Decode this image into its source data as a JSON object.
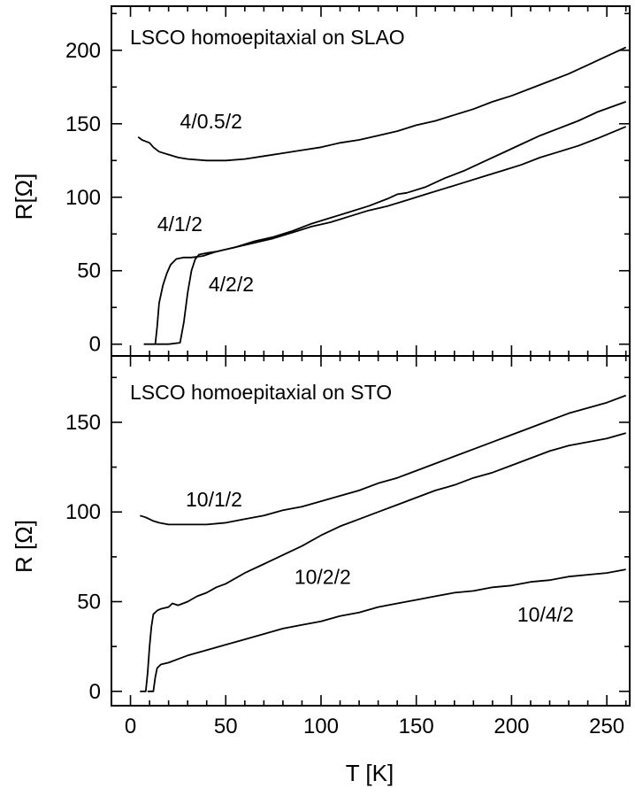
{
  "chart_data": [
    {
      "type": "line",
      "title": "LSCO homoepitaxial on SLAO",
      "xlabel": "",
      "ylabel": "R[Ω]",
      "xlim": [
        -10,
        262
      ],
      "ylim": [
        -8,
        230
      ],
      "x_ticks": [
        0,
        50,
        100,
        150,
        200,
        250
      ],
      "y_ticks": [
        0,
        50,
        100,
        150,
        200
      ],
      "y_tick_labels": [
        "0",
        "50",
        "100",
        "150",
        "200"
      ],
      "series": [
        {
          "label": "4/0.5/2",
          "label_at": [
            26,
            147
          ],
          "x": [
            4,
            6,
            8,
            10,
            12,
            15,
            20,
            25,
            30,
            40,
            50,
            60,
            70,
            80,
            90,
            100,
            110,
            120,
            130,
            140,
            150,
            160,
            170,
            180,
            190,
            200,
            210,
            220,
            230,
            240,
            250,
            260
          ],
          "y": [
            141,
            139,
            138,
            137,
            134,
            131,
            129,
            127,
            126,
            125,
            125,
            126,
            128,
            130,
            132,
            134,
            137,
            139,
            142,
            145,
            149,
            152,
            156,
            160,
            165,
            169,
            174,
            179,
            184,
            190,
            196,
            202
          ]
        },
        {
          "label": "4/1/2",
          "label_at": [
            14,
            77
          ],
          "x": [
            7,
            13,
            14,
            15,
            17,
            19,
            21,
            24,
            28,
            32,
            38,
            45,
            55,
            65,
            75,
            85,
            95,
            105,
            115,
            125,
            135,
            140,
            145,
            155,
            165,
            175,
            185,
            195,
            205,
            215,
            225,
            235,
            245,
            260
          ],
          "y": [
            0,
            0,
            12,
            28,
            40,
            48,
            54,
            58,
            59,
            59,
            60,
            63,
            66,
            70,
            73,
            77,
            82,
            86,
            90,
            94,
            99,
            102,
            103,
            107,
            113,
            118,
            124,
            130,
            136,
            142,
            147,
            152,
            158,
            165
          ]
        },
        {
          "label": "4/2/2",
          "label_at": [
            41,
            36
          ],
          "x": [
            13,
            20,
            26,
            28,
            30,
            32,
            34,
            36,
            40,
            45,
            55,
            65,
            75,
            85,
            95,
            105,
            115,
            125,
            135,
            145,
            155,
            165,
            175,
            185,
            195,
            205,
            215,
            225,
            235,
            245,
            260
          ],
          "y": [
            0,
            0,
            1,
            15,
            35,
            50,
            58,
            61,
            62,
            63,
            66,
            69,
            72,
            76,
            80,
            83,
            87,
            91,
            94,
            98,
            102,
            106,
            110,
            114,
            118,
            122,
            127,
            131,
            135,
            140,
            148
          ]
        }
      ]
    },
    {
      "type": "line",
      "title": "LSCO homoepitaxial on STO",
      "xlabel": "T [K]",
      "ylabel": "R [Ω]",
      "xlim": [
        -10,
        262
      ],
      "ylim": [
        -8,
        187
      ],
      "x_ticks": [
        0,
        50,
        100,
        150,
        200,
        250
      ],
      "y_ticks": [
        0,
        50,
        100,
        150
      ],
      "x_tick_labels": [
        "0",
        "50",
        "100",
        "150",
        "200",
        "250"
      ],
      "y_tick_labels": [
        "0",
        "50",
        "100",
        "150"
      ],
      "series": [
        {
          "label": "10/1/2",
          "label_at": [
            29,
            103
          ],
          "x": [
            5,
            8,
            12,
            15,
            20,
            30,
            40,
            50,
            60,
            70,
            80,
            90,
            100,
            110,
            120,
            130,
            140,
            150,
            160,
            170,
            180,
            190,
            200,
            210,
            220,
            230,
            240,
            250,
            260
          ],
          "y": [
            98,
            97,
            95,
            94,
            93,
            93,
            93,
            94,
            96,
            98,
            101,
            103,
            106,
            109,
            112,
            116,
            119,
            123,
            127,
            131,
            135,
            139,
            143,
            147,
            151,
            155,
            158,
            161,
            165
          ]
        },
        {
          "label": "10/2/2",
          "label_at": [
            86,
            60
          ],
          "x": [
            5,
            8,
            9,
            10,
            11,
            12,
            14,
            16,
            20,
            22,
            25,
            30,
            35,
            40,
            45,
            50,
            60,
            70,
            80,
            90,
            100,
            110,
            120,
            130,
            140,
            150,
            160,
            170,
            180,
            190,
            200,
            210,
            220,
            230,
            240,
            250,
            260
          ],
          "y": [
            0,
            0,
            10,
            25,
            36,
            43,
            45,
            46,
            47,
            49,
            48,
            50,
            53,
            55,
            58,
            60,
            66,
            71,
            76,
            81,
            87,
            92,
            96,
            100,
            104,
            108,
            112,
            115,
            119,
            122,
            126,
            130,
            134,
            137,
            139,
            141,
            144
          ]
        },
        {
          "label": "10/4/2",
          "label_at": [
            203,
            39
          ],
          "x": [
            9,
            12,
            13,
            14,
            16,
            20,
            25,
            30,
            40,
            50,
            60,
            70,
            80,
            90,
            100,
            110,
            120,
            130,
            140,
            150,
            160,
            170,
            180,
            190,
            200,
            210,
            220,
            230,
            240,
            250,
            260
          ],
          "y": [
            0,
            0,
            8,
            13,
            15,
            16,
            18,
            20,
            23,
            26,
            29,
            32,
            35,
            37,
            39,
            42,
            44,
            47,
            49,
            51,
            53,
            55,
            56,
            58,
            59,
            61,
            62,
            64,
            65,
            66,
            68
          ]
        }
      ]
    }
  ]
}
